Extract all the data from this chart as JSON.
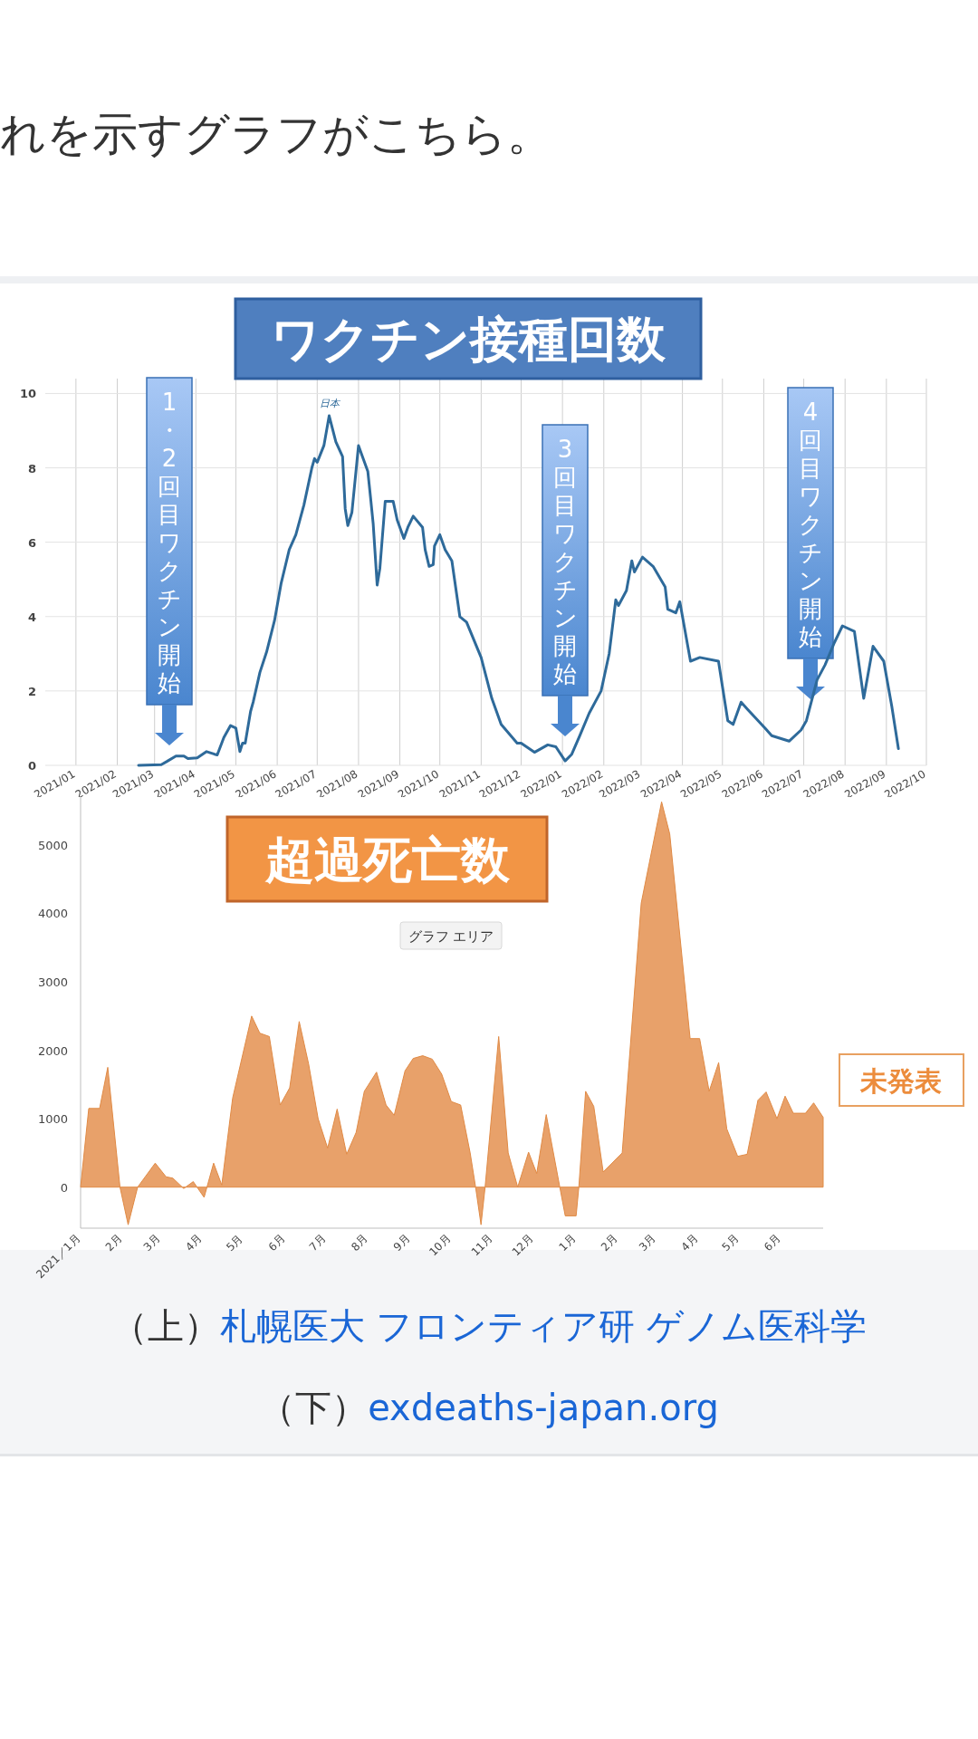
{
  "chart_data": [
    {
      "type": "line",
      "title": "ワクチン接種回数",
      "series": [
        {
          "name": "日本",
          "color": "#2e6a9a",
          "x": [
            "2021-02-17",
            "2021-03-06",
            "2021-03-10",
            "2021-03-17",
            "2021-03-23",
            "2021-03-26",
            "2021-04-02",
            "2021-04-09",
            "2021-04-15",
            "2021-04-17",
            "2021-04-22",
            "2021-04-27",
            "2021-05-01",
            "2021-05-04",
            "2021-05-06",
            "2021-05-08",
            "2021-05-12",
            "2021-05-14",
            "2021-05-19",
            "2021-05-24",
            "2021-05-30",
            "2021-06-04",
            "2021-06-10",
            "2021-06-15",
            "2021-06-21",
            "2021-06-27",
            "2021-06-29",
            "2021-07-01",
            "2021-07-06",
            "2021-07-10",
            "2021-07-15",
            "2021-07-20",
            "2021-07-22",
            "2021-07-24",
            "2021-07-27",
            "2021-08-01",
            "2021-08-04",
            "2021-08-08",
            "2021-08-10",
            "2021-08-12",
            "2021-08-15",
            "2021-08-17",
            "2021-08-21",
            "2021-08-27",
            "2021-08-30",
            "2021-09-04",
            "2021-09-07",
            "2021-09-11",
            "2021-09-18",
            "2021-09-20",
            "2021-09-23",
            "2021-09-26",
            "2021-09-27",
            "2021-10-01",
            "2021-10-05",
            "2021-10-10",
            "2021-10-16",
            "2021-10-21",
            "2021-11-01",
            "2021-11-09",
            "2021-11-16",
            "2021-11-28",
            "2021-12-01",
            "2021-12-11",
            "2021-12-21",
            "2021-12-27",
            "2022-01-03",
            "2022-01-08",
            "2022-01-14",
            "2022-01-21",
            "2022-01-30",
            "2022-02-05",
            "2022-02-10",
            "2022-02-12",
            "2022-02-18",
            "2022-02-22",
            "2022-02-24",
            "2022-03-02",
            "2022-03-10",
            "2022-03-19",
            "2022-03-21",
            "2022-03-27",
            "2022-03-30",
            "2022-04-07",
            "2022-04-14",
            "2022-04-28",
            "2022-05-05",
            "2022-05-09",
            "2022-05-15",
            "2022-05-20",
            "2022-06-02",
            "2022-06-07",
            "2022-06-20",
            "2022-06-29",
            "2022-07-03",
            "2022-07-11",
            "2022-07-17",
            "2022-07-24",
            "2022-07-30",
            "2022-08-08",
            "2022-08-15",
            "2022-08-22",
            "2022-08-30",
            "2022-09-05",
            "2022-09-10"
          ],
          "values": [
            0,
            0.02,
            0.1,
            0.25,
            0.25,
            0.18,
            0.2,
            0.37,
            0.3,
            0.28,
            0.75,
            1.07,
            1.0,
            0.37,
            0.6,
            0.6,
            1.45,
            1.7,
            2.5,
            3.05,
            3.9,
            4.9,
            5.8,
            6.2,
            7.0,
            8.0,
            8.25,
            8.15,
            8.6,
            9.4,
            8.7,
            8.3,
            6.9,
            6.45,
            6.8,
            8.6,
            8.3,
            7.9,
            7.2,
            6.5,
            4.85,
            5.3,
            7.1,
            7.1,
            6.6,
            6.1,
            6.4,
            6.7,
            6.4,
            5.8,
            5.35,
            5.4,
            5.9,
            6.2,
            5.8,
            5.5,
            4.0,
            3.85,
            2.9,
            1.8,
            1.1,
            0.6,
            0.6,
            0.35,
            0.55,
            0.5,
            0.12,
            0.3,
            0.8,
            1.4,
            2.0,
            3.0,
            4.45,
            4.3,
            4.7,
            5.5,
            5.2,
            5.6,
            5.35,
            4.8,
            4.2,
            4.1,
            4.4,
            2.8,
            2.9,
            2.8,
            1.2,
            1.1,
            1.7,
            1.5,
            1.0,
            0.8,
            0.65,
            0.95,
            1.2,
            2.3,
            2.7,
            3.3,
            3.75,
            3.6,
            1.8,
            3.2,
            2.8,
            1.6,
            0.45
          ]
        }
      ],
      "xlim": [
        "2020-12-09",
        "2022-10-01"
      ],
      "xticks": [
        {
          "value": "2021-01-01",
          "label": "2021/01"
        },
        {
          "value": "2021-02-01",
          "label": "2021/02"
        },
        {
          "value": "2021-03-01",
          "label": "2021/03"
        },
        {
          "value": "2021-04-01",
          "label": "2021/04"
        },
        {
          "value": "2021-05-01",
          "label": "2021/05"
        },
        {
          "value": "2021-06-01",
          "label": "2021/06"
        },
        {
          "value": "2021-07-01",
          "label": "2021/07"
        },
        {
          "value": "2021-08-01",
          "label": "2021/08"
        },
        {
          "value": "2021-09-01",
          "label": "2021/09"
        },
        {
          "value": "2021-10-01",
          "label": "2021/10"
        },
        {
          "value": "2021-11-01",
          "label": "2021/11"
        },
        {
          "value": "2021-12-01",
          "label": "2021/12"
        },
        {
          "value": "2022-01-01",
          "label": "2022/01"
        },
        {
          "value": "2022-02-01",
          "label": "2022/02"
        },
        {
          "value": "2022-03-01",
          "label": "2022/03"
        },
        {
          "value": "2022-04-01",
          "label": "2022/04"
        },
        {
          "value": "2022-05-01",
          "label": "2022/05"
        },
        {
          "value": "2022-06-01",
          "label": "2022/06"
        },
        {
          "value": "2022-07-01",
          "label": "2022/07"
        },
        {
          "value": "2022-08-01",
          "label": "2022/08"
        },
        {
          "value": "2022-09-01",
          "label": "2022/09"
        },
        {
          "value": "2022-10-01",
          "label": "2022/10"
        }
      ],
      "ylim": [
        0,
        10.4
      ],
      "yticks": [
        0,
        2,
        4,
        6,
        8,
        10
      ],
      "grid": true,
      "annotations": [
        "れを示すグラフがこちら。",
        "1・2回目ワクチン開始",
        "3回目ワクチン開始",
        "4回目ワクチン開始"
      ]
    },
    {
      "type": "area",
      "title": "超過死亡数",
      "series": [
        {
          "color": "#e8a16a",
          "x": [
            "2021-01-01",
            "2021-01-07",
            "2021-01-15",
            "2021-01-21",
            "2021-01-30",
            "2021-02-05",
            "2021-02-12",
            "2021-02-25",
            "2021-03-05",
            "2021-03-10",
            "2021-03-18",
            "2021-03-25",
            "2021-04-02",
            "2021-04-09",
            "2021-04-15",
            "2021-04-23",
            "2021-05-07",
            "2021-05-13",
            "2021-05-20",
            "2021-05-28",
            "2021-06-04",
            "2021-06-11",
            "2021-06-18",
            "2021-06-25",
            "2021-07-02",
            "2021-07-09",
            "2021-07-16",
            "2021-07-23",
            "2021-07-29",
            "2021-08-07",
            "2021-08-14",
            "2021-08-20",
            "2021-08-28",
            "2021-09-03",
            "2021-09-10",
            "2021-09-17",
            "2021-09-24",
            "2021-10-01",
            "2021-10-08",
            "2021-10-15",
            "2021-10-19",
            "2021-10-23",
            "2021-10-26",
            "2021-11-05",
            "2021-11-12",
            "2021-11-19",
            "2021-11-27",
            "2021-12-03",
            "2021-12-10",
            "2021-12-20",
            "2021-12-24",
            "2022-01-01",
            "2022-01-03",
            "2022-01-08",
            "2022-01-14",
            "2022-01-21",
            "2022-02-04",
            "2022-02-18",
            "2022-03-05",
            "2022-03-11",
            "2022-03-26",
            "2022-04-02",
            "2022-04-09",
            "2022-04-16",
            "2022-04-22",
            "2022-04-30",
            "2022-05-07",
            "2022-05-15",
            "2022-05-21",
            "2022-05-29",
            "2022-06-04",
            "2022-06-10",
            "2022-06-19",
            "2022-06-25",
            "2022-07-02"
          ],
          "values": [
            0,
            1150,
            1150,
            1750,
            0,
            -550,
            0,
            350,
            150,
            130,
            -20,
            80,
            -150,
            350,
            30,
            1300,
            2500,
            2250,
            2200,
            1200,
            1450,
            2420,
            1800,
            1000,
            570,
            1140,
            480,
            800,
            1400,
            1680,
            1200,
            1050,
            1700,
            1880,
            1920,
            1870,
            1650,
            1250,
            1200,
            500,
            0,
            -550,
            0,
            2200,
            500,
            0,
            510,
            200,
            1060,
            0,
            -420,
            -420,
            0,
            1400,
            1180,
            220,
            500,
            4150,
            5630,
            5160,
            2170,
            2170,
            1400,
            1820,
            850,
            450,
            480,
            1270,
            1390,
            1000,
            1330,
            1080,
            1080,
            1230,
            1020
          ]
        }
      ],
      "xlim": [
        "2021-01-01",
        "2022-07-02"
      ],
      "xticks": [
        {
          "value": "2021-01-01",
          "label": "2021／1月"
        },
        {
          "value": "2021-02-01",
          "label": "2月"
        },
        {
          "value": "2021-03-01",
          "label": "3月"
        },
        {
          "value": "2021-04-01",
          "label": "4月"
        },
        {
          "value": "2021-05-01",
          "label": "5月"
        },
        {
          "value": "2021-06-01",
          "label": "6月"
        },
        {
          "value": "2021-07-01",
          "label": "7月"
        },
        {
          "value": "2021-08-01",
          "label": "8月"
        },
        {
          "value": "2021-09-01",
          "label": "9月"
        },
        {
          "value": "2021-10-01",
          "label": "10月"
        },
        {
          "value": "2021-11-01",
          "label": "11月"
        },
        {
          "value": "2021-12-01",
          "label": "12月"
        },
        {
          "value": "2022-01-01",
          "label": "1月"
        },
        {
          "value": "2022-02-01",
          "label": "2月"
        },
        {
          "value": "2022-03-01",
          "label": "3月"
        },
        {
          "value": "2022-04-01",
          "label": "4月"
        },
        {
          "value": "2022-05-01",
          "label": "5月"
        },
        {
          "value": "2022-06-01",
          "label": "6月"
        }
      ],
      "ylim": [
        -600,
        5700
      ],
      "yticks": [
        0,
        1000,
        2000,
        3000,
        4000,
        5000
      ],
      "grid": false,
      "annotations": [
        "グラフ エリア",
        "未発表",
        "（上）札幌医大 フロンティア研 ゲノム医科学",
        "（下）exdeaths-japan.org"
      ]
    }
  ]
}
